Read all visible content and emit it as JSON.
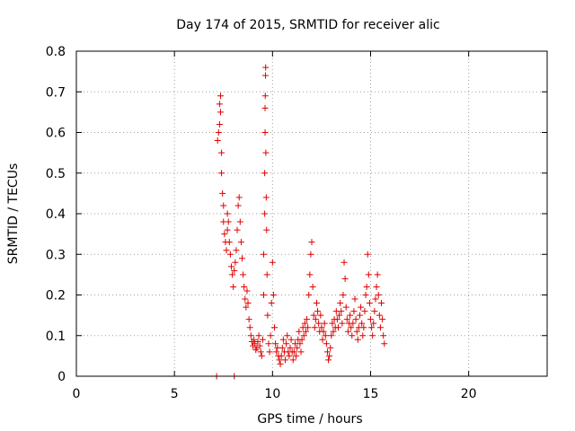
{
  "chart_data": {
    "type": "scatter",
    "title": "Day 174 of 2015, SRMTID for receiver alic",
    "xlabel": "GPS time / hours",
    "ylabel": "SRMTID / TECUs",
    "xlim": [
      0,
      24
    ],
    "ylim": [
      0,
      0.8
    ],
    "xticks": [
      0,
      5,
      10,
      15,
      20
    ],
    "yticks": [
      0,
      0.1,
      0.2,
      0.3,
      0.4,
      0.5,
      0.6,
      0.7,
      0.8
    ],
    "xtick_labels": [
      "0",
      "5",
      "10",
      "15",
      "20"
    ],
    "ytick_labels": [
      "0",
      "0.1",
      "0.2",
      "0.3",
      "0.4",
      "0.5",
      "0.6",
      "0.7",
      "0.8"
    ],
    "grid": true,
    "marker": "+",
    "color": "#e00000",
    "series": [
      {
        "name": "alic",
        "points": [
          [
            7.15,
            0.0
          ],
          [
            8.05,
            0.0
          ],
          [
            7.2,
            0.58
          ],
          [
            7.25,
            0.6
          ],
          [
            7.3,
            0.62
          ],
          [
            7.3,
            0.67
          ],
          [
            7.35,
            0.69
          ],
          [
            7.35,
            0.65
          ],
          [
            7.4,
            0.55
          ],
          [
            7.4,
            0.5
          ],
          [
            7.45,
            0.45
          ],
          [
            7.5,
            0.42
          ],
          [
            7.5,
            0.38
          ],
          [
            7.55,
            0.35
          ],
          [
            7.6,
            0.33
          ],
          [
            7.65,
            0.31
          ],
          [
            7.7,
            0.36
          ],
          [
            7.7,
            0.4
          ],
          [
            7.75,
            0.38
          ],
          [
            7.8,
            0.33
          ],
          [
            7.85,
            0.3
          ],
          [
            7.9,
            0.27
          ],
          [
            7.95,
            0.25
          ],
          [
            8.0,
            0.22
          ],
          [
            8.05,
            0.26
          ],
          [
            8.1,
            0.28
          ],
          [
            8.15,
            0.31
          ],
          [
            8.2,
            0.36
          ],
          [
            8.25,
            0.42
          ],
          [
            8.3,
            0.44
          ],
          [
            8.35,
            0.38
          ],
          [
            8.4,
            0.33
          ],
          [
            8.45,
            0.29
          ],
          [
            8.5,
            0.25
          ],
          [
            8.55,
            0.22
          ],
          [
            8.6,
            0.19
          ],
          [
            8.65,
            0.17
          ],
          [
            8.7,
            0.21
          ],
          [
            8.75,
            0.18
          ],
          [
            8.8,
            0.14
          ],
          [
            8.85,
            0.12
          ],
          [
            8.9,
            0.1
          ],
          [
            8.95,
            0.085
          ],
          [
            9.0,
            0.075
          ],
          [
            9.05,
            0.09
          ],
          [
            9.1,
            0.08
          ],
          [
            9.15,
            0.065
          ],
          [
            9.2,
            0.07
          ],
          [
            9.25,
            0.085
          ],
          [
            9.3,
            0.1
          ],
          [
            9.35,
            0.075
          ],
          [
            9.4,
            0.06
          ],
          [
            9.45,
            0.05
          ],
          [
            9.5,
            0.09
          ],
          [
            9.55,
            0.2
          ],
          [
            9.55,
            0.3
          ],
          [
            9.6,
            0.4
          ],
          [
            9.6,
            0.5
          ],
          [
            9.62,
            0.6
          ],
          [
            9.62,
            0.66
          ],
          [
            9.63,
            0.69
          ],
          [
            9.64,
            0.74
          ],
          [
            9.65,
            0.76
          ],
          [
            9.66,
            0.55
          ],
          [
            9.68,
            0.44
          ],
          [
            9.7,
            0.36
          ],
          [
            9.72,
            0.25
          ],
          [
            9.75,
            0.15
          ],
          [
            9.8,
            0.08
          ],
          [
            9.85,
            0.06
          ],
          [
            9.9,
            0.1
          ],
          [
            9.95,
            0.18
          ],
          [
            10.0,
            0.28
          ],
          [
            10.05,
            0.2
          ],
          [
            10.1,
            0.12
          ],
          [
            10.15,
            0.08
          ],
          [
            10.2,
            0.06
          ],
          [
            10.25,
            0.07
          ],
          [
            10.3,
            0.05
          ],
          [
            10.35,
            0.04
          ],
          [
            10.4,
            0.03
          ],
          [
            10.45,
            0.05
          ],
          [
            10.5,
            0.07
          ],
          [
            10.55,
            0.09
          ],
          [
            10.6,
            0.06
          ],
          [
            10.65,
            0.04
          ],
          [
            10.7,
            0.08
          ],
          [
            10.75,
            0.1
          ],
          [
            10.8,
            0.06
          ],
          [
            10.85,
            0.05
          ],
          [
            10.9,
            0.07
          ],
          [
            10.95,
            0.09
          ],
          [
            11.0,
            0.06
          ],
          [
            11.05,
            0.04
          ],
          [
            11.1,
            0.06
          ],
          [
            11.15,
            0.08
          ],
          [
            11.2,
            0.05
          ],
          [
            11.25,
            0.07
          ],
          [
            11.3,
            0.09
          ],
          [
            11.35,
            0.11
          ],
          [
            11.4,
            0.08
          ],
          [
            11.45,
            0.06
          ],
          [
            11.5,
            0.09
          ],
          [
            11.55,
            0.12
          ],
          [
            11.6,
            0.1
          ],
          [
            11.65,
            0.13
          ],
          [
            11.7,
            0.11
          ],
          [
            11.75,
            0.14
          ],
          [
            11.8,
            0.12
          ],
          [
            11.85,
            0.2
          ],
          [
            11.9,
            0.25
          ],
          [
            11.95,
            0.3
          ],
          [
            12.0,
            0.33
          ],
          [
            12.05,
            0.22
          ],
          [
            12.1,
            0.15
          ],
          [
            12.15,
            0.12
          ],
          [
            12.2,
            0.14
          ],
          [
            12.25,
            0.18
          ],
          [
            12.3,
            0.16
          ],
          [
            12.35,
            0.13
          ],
          [
            12.4,
            0.11
          ],
          [
            12.45,
            0.15
          ],
          [
            12.5,
            0.12
          ],
          [
            12.55,
            0.09
          ],
          [
            12.6,
            0.11
          ],
          [
            12.65,
            0.13
          ],
          [
            12.7,
            0.1
          ],
          [
            12.75,
            0.08
          ],
          [
            12.8,
            0.06
          ],
          [
            12.85,
            0.04
          ],
          [
            12.9,
            0.05
          ],
          [
            12.95,
            0.07
          ],
          [
            13.0,
            0.1
          ],
          [
            13.05,
            0.13
          ],
          [
            13.1,
            0.11
          ],
          [
            13.15,
            0.14
          ],
          [
            13.2,
            0.12
          ],
          [
            13.25,
            0.16
          ],
          [
            13.3,
            0.14
          ],
          [
            13.35,
            0.12
          ],
          [
            13.4,
            0.15
          ],
          [
            13.45,
            0.18
          ],
          [
            13.5,
            0.16
          ],
          [
            13.55,
            0.13
          ],
          [
            13.6,
            0.2
          ],
          [
            13.65,
            0.28
          ],
          [
            13.7,
            0.24
          ],
          [
            13.75,
            0.17
          ],
          [
            13.8,
            0.14
          ],
          [
            13.85,
            0.11
          ],
          [
            13.9,
            0.13
          ],
          [
            13.95,
            0.15
          ],
          [
            14.0,
            0.12
          ],
          [
            14.05,
            0.1
          ],
          [
            14.1,
            0.13
          ],
          [
            14.15,
            0.16
          ],
          [
            14.2,
            0.19
          ],
          [
            14.25,
            0.14
          ],
          [
            14.3,
            0.11
          ],
          [
            14.35,
            0.09
          ],
          [
            14.4,
            0.12
          ],
          [
            14.45,
            0.15
          ],
          [
            14.5,
            0.17
          ],
          [
            14.55,
            0.13
          ],
          [
            14.6,
            0.1
          ],
          [
            14.65,
            0.12
          ],
          [
            14.7,
            0.16
          ],
          [
            14.75,
            0.2
          ],
          [
            14.8,
            0.22
          ],
          [
            14.85,
            0.3
          ],
          [
            14.9,
            0.25
          ],
          [
            14.95,
            0.18
          ],
          [
            15.0,
            0.14
          ],
          [
            15.05,
            0.12
          ],
          [
            15.1,
            0.1
          ],
          [
            15.15,
            0.13
          ],
          [
            15.2,
            0.16
          ],
          [
            15.25,
            0.19
          ],
          [
            15.3,
            0.22
          ],
          [
            15.35,
            0.25
          ],
          [
            15.4,
            0.2
          ],
          [
            15.45,
            0.15
          ],
          [
            15.5,
            0.12
          ],
          [
            15.55,
            0.18
          ],
          [
            15.6,
            0.14
          ],
          [
            15.65,
            0.1
          ],
          [
            15.7,
            0.08
          ]
        ]
      }
    ]
  }
}
